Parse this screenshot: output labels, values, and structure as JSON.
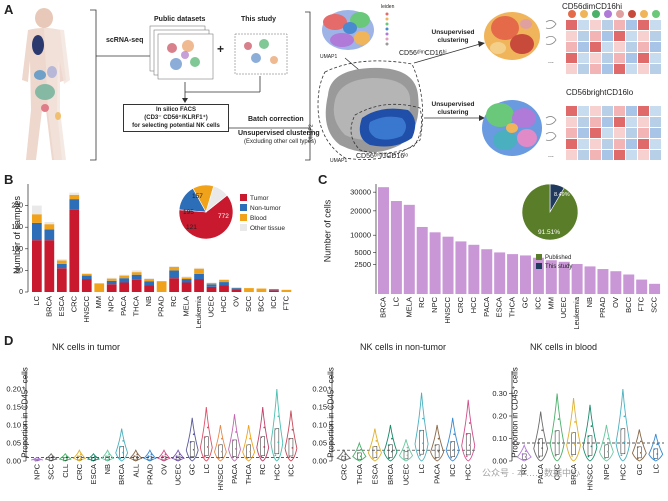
{
  "panelA": {
    "letter": "A",
    "scrna_seq": "scRNA-seq",
    "public_datasets": "Public datasets",
    "plus": "+",
    "this_study": "This study",
    "facs_line1": "In silico FACS",
    "facs_line2": "(CD3⁻ CD56⁺/KLRF1⁺)",
    "facs_line3": "for selecting potential NK cells",
    "batch_correction": "Batch correction",
    "unsup_clust": "Unsupervised clustering",
    "unsup_clust_sub": "(Excluding other cell types)",
    "umap1": "UMAP1",
    "umap2": "UMAP2",
    "leiden": "leiden",
    "dim_label": "CD56ᵈⁱᵐCD16ʰⁱ",
    "bright_label": "CD56ᵇʳⁱᵍʰᵗCD16ˡᵒ",
    "unsup_top": "Unsupervised clustering",
    "unsup_bottom": "Unsupervised clustering",
    "heat_top_title": "CD56dimCD16hi",
    "heat_bottom_title": "CD56brightCD16lo",
    "dots": "..."
  },
  "panelB": {
    "letter": "B",
    "ylabel": "Number of samples",
    "legend": [
      "Tumor",
      "Non-tumor",
      "Blood",
      "Other tissue"
    ],
    "pie_values": [
      "772",
      "157",
      "195",
      "121"
    ]
  },
  "panelC": {
    "letter": "C",
    "ylabel": "Number of cells",
    "legend": [
      "Published",
      "This study"
    ],
    "pie_values": [
      "91.51%",
      "8.49%"
    ]
  },
  "panelD": {
    "letter": "D",
    "ylabel": "Proportion in CD45⁺ cells",
    "tumor_title": "NK cells in tumor",
    "nontumor_title": "NK cells in non-tumor",
    "blood_title": "NK cells in blood",
    "watermark": "公众号 · 本……数据中心"
  },
  "colors": {
    "tumor": "#c8192f",
    "nontumor": "#2c6fb8",
    "blood": "#f0a21a",
    "other": "#e9e9e9",
    "bars_c": "#c996d6",
    "published": "#5a7d2a",
    "this_study": "#1f3a5c"
  },
  "chart_data": [
    {
      "type": "bar",
      "title": "",
      "ylabel": "Number of samples",
      "ylim": [
        0,
        250
      ],
      "yticks": [
        0,
        50,
        100,
        150,
        200
      ],
      "categories": [
        "LC",
        "BRCA",
        "ESCA",
        "CRC",
        "HNSCC",
        "MM",
        "NPC",
        "PACA",
        "THCA",
        "NB",
        "PRAD",
        "RC",
        "MELA",
        "Leukemia",
        "UCEC",
        "HCC",
        "OV",
        "SCC",
        "BCC",
        "ICC",
        "FTC"
      ],
      "series": [
        {
          "name": "Tumor",
          "values": [
            120,
            120,
            55,
            190,
            30,
            0,
            18,
            22,
            28,
            15,
            0,
            32,
            22,
            30,
            12,
            15,
            6,
            0,
            0,
            4,
            0
          ]
        },
        {
          "name": "Non-tumor",
          "values": [
            40,
            25,
            10,
            25,
            8,
            0,
            8,
            10,
            12,
            10,
            0,
            18,
            8,
            12,
            6,
            8,
            3,
            0,
            0,
            2,
            0
          ]
        },
        {
          "name": "Blood",
          "values": [
            20,
            12,
            8,
            10,
            4,
            20,
            5,
            6,
            6,
            5,
            25,
            8,
            4,
            12,
            3,
            5,
            1,
            9,
            8,
            1,
            5
          ]
        },
        {
          "name": "Other tissue",
          "values": [
            20,
            5,
            3,
            5,
            2,
            0,
            2,
            2,
            4,
            2,
            0,
            2,
            2,
            2,
            1,
            2,
            0,
            0,
            0,
            0,
            0
          ]
        }
      ],
      "inset_pie": {
        "labels": [
          "Tumor",
          "Non-tumor",
          "Blood",
          "Other tissue"
        ],
        "values": [
          772,
          195,
          157,
          121
        ]
      }
    },
    {
      "type": "bar",
      "ylabel": "Number of cells",
      "yscale": "sqrt",
      "ylim": [
        0,
        35000
      ],
      "yticks": [
        2500,
        5000,
        10000,
        20000,
        30000
      ],
      "categories": [
        "BRCA",
        "LC",
        "MELA",
        "RC",
        "NPC",
        "HNSCC",
        "CRC",
        "HCC",
        "PACA",
        "ESCA",
        "THCA",
        "GC",
        "ICC",
        "MM",
        "UCEC",
        "Leukemia",
        "NB",
        "PRAD",
        "OV",
        "BCC",
        "FTC",
        "SCC"
      ],
      "values": [
        33000,
        25000,
        23000,
        13000,
        11000,
        9500,
        8000,
        7000,
        5800,
        5000,
        4600,
        4300,
        3800,
        3300,
        3000,
        2600,
        2200,
        1800,
        1500,
        1100,
        600,
        300
      ],
      "inset_pie": {
        "labels": [
          "Published",
          "This study"
        ],
        "values": [
          91.51,
          8.49
        ]
      }
    },
    {
      "type": "violin",
      "title": "NK cells in tumor",
      "ylabel": "Proportion in CD45⁺ cells",
      "ylim": [
        0,
        0.25
      ],
      "yticks": [
        0,
        0.05,
        0.1,
        0.15,
        0.2
      ],
      "reference_line": 0.01,
      "categories": [
        "NPC",
        "SCC",
        "CLL",
        "CRC",
        "ESCA",
        "NB",
        "BRCA",
        "ALL",
        "PRAD",
        "OV",
        "UCEC",
        "GC",
        "LC",
        "HNSCC",
        "PACA",
        "THCA",
        "RC",
        "HCC",
        "ICC"
      ],
      "max_values": [
        0.01,
        0.02,
        0.02,
        0.03,
        0.02,
        0.03,
        0.09,
        0.03,
        0.03,
        0.03,
        0.03,
        0.12,
        0.15,
        0.1,
        0.13,
        0.1,
        0.15,
        0.2,
        0.14
      ]
    },
    {
      "type": "violin",
      "title": "NK cells in non-tumor",
      "ylabel": "Proportion in CD45⁺ cells",
      "ylim": [
        0,
        0.25
      ],
      "yticks": [
        0,
        0.05,
        0.1,
        0.15,
        0.2
      ],
      "reference_line": 0.03,
      "categories": [
        "CRC",
        "THCA",
        "ESCA",
        "BRCA",
        "UCEC",
        "LC",
        "PACA",
        "ICC",
        "HCC"
      ],
      "max_values": [
        0.03,
        0.05,
        0.09,
        0.1,
        0.06,
        0.19,
        0.1,
        0.12,
        0.17
      ]
    },
    {
      "type": "violin",
      "title": "NK cells in blood",
      "ylabel": "Proportion in CD45⁺ cells",
      "ylim": [
        0,
        0.4
      ],
      "yticks": [
        0,
        0.1,
        0.2,
        0.3
      ],
      "reference_line": 0.08,
      "categories": [
        "RC",
        "PACA",
        "CRC",
        "BRCA",
        "HNSCC",
        "NPC",
        "HCC",
        "GC",
        "LC"
      ],
      "max_values": [
        0.07,
        0.22,
        0.3,
        0.28,
        0.25,
        0.16,
        0.32,
        0.14,
        0.12
      ]
    }
  ]
}
